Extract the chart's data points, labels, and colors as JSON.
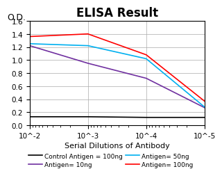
{
  "title": "ELISA Result",
  "od_label": "O.D.",
  "xlabel": "Serial Dilutions of Antibody",
  "x_values": [
    0.01,
    0.001,
    0.0001,
    1e-05
  ],
  "series": [
    {
      "label": "Control Antigen = 100ng",
      "color": "#000000",
      "y_values": [
        0.13,
        0.13,
        0.12,
        0.12
      ]
    },
    {
      "label": "Antigen= 10ng",
      "color": "#7030A0",
      "y_values": [
        1.22,
        0.95,
        0.72,
        0.27
      ]
    },
    {
      "label": "Antigen= 50ng",
      "color": "#00B0F0",
      "y_values": [
        1.25,
        1.22,
        1.02,
        0.28
      ]
    },
    {
      "label": "Antigen= 100ng",
      "color": "#FF0000",
      "y_values": [
        1.36,
        1.4,
        1.08,
        0.37
      ]
    }
  ],
  "ylim": [
    0,
    1.6
  ],
  "yticks": [
    0,
    0.2,
    0.4,
    0.6,
    0.8,
    1.0,
    1.2,
    1.4,
    1.6
  ],
  "xtick_labels": [
    "10^-2",
    "10^-3",
    "10^-4",
    "10^-5"
  ],
  "background_color": "#ffffff",
  "title_fontsize": 12,
  "label_fontsize": 8,
  "tick_fontsize": 7.5,
  "legend_fontsize": 6.5,
  "od_fontsize": 9
}
